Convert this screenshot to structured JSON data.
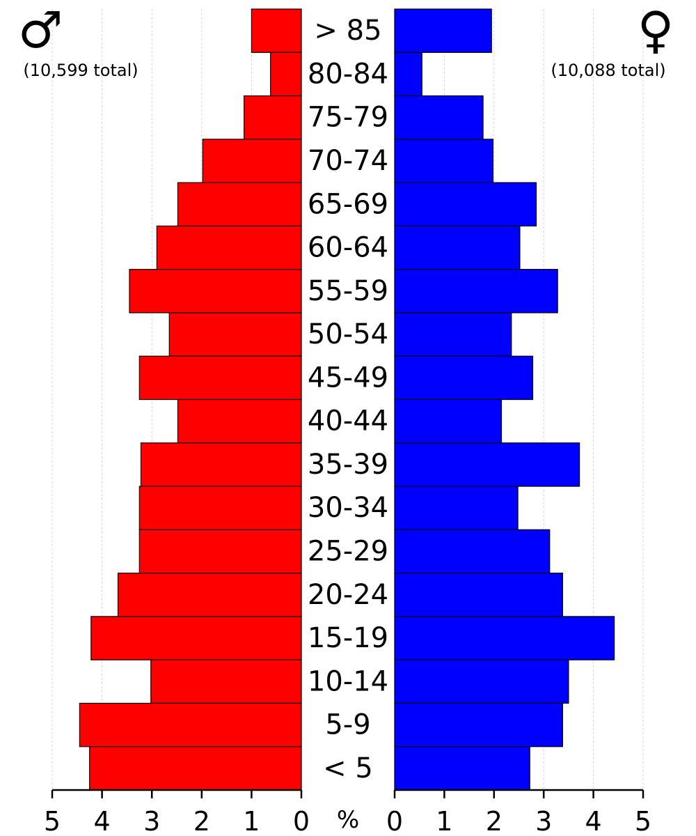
{
  "chart_data": {
    "type": "bar",
    "orientation": "horizontal-population-pyramid",
    "categories": [
      "> 85",
      "80-84",
      "75-79",
      "70-74",
      "65-69",
      "60-64",
      "55-59",
      "50-54",
      "45-49",
      "40-44",
      "35-39",
      "30-34",
      "25-29",
      "20-24",
      "15-19",
      "10-14",
      "5-9",
      "< 5"
    ],
    "series": [
      {
        "side": "left",
        "symbol": "♂",
        "color": "#ff0000",
        "total_label": "(10,599 total)",
        "values": [
          1.0,
          0.62,
          1.15,
          1.98,
          2.48,
          2.9,
          3.45,
          2.65,
          3.25,
          2.48,
          3.22,
          3.25,
          3.25,
          3.68,
          4.22,
          3.02,
          4.45,
          4.25
        ]
      },
      {
        "side": "right",
        "symbol": "♀",
        "color": "#0000ff",
        "total_label": "(10,088 total)",
        "values": [
          1.95,
          0.55,
          1.78,
          1.98,
          2.85,
          2.52,
          3.28,
          2.35,
          2.78,
          2.15,
          3.72,
          2.48,
          3.12,
          3.38,
          4.42,
          3.5,
          3.38,
          2.72
        ]
      }
    ],
    "x_ticks": [
      "0",
      "1",
      "2",
      "3",
      "4",
      "5"
    ],
    "xlim": [
      0,
      5
    ],
    "unit_label": "%",
    "grid": "vertical dashed"
  }
}
